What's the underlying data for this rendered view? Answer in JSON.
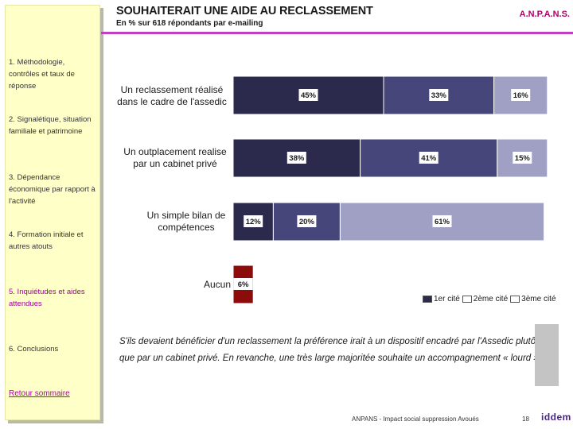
{
  "sidebar": {
    "items": [
      {
        "label": "1. Méthodologie, contrôles et taux de réponse"
      },
      {
        "label": "2. Signalétique, situation familiale et patrimoine"
      },
      {
        "label": "3. Dépendance économique par rapport à l'activité"
      },
      {
        "label": "4. Formation initiale et autres atouts"
      },
      {
        "label": "5. Inquiétudes et aides attendues"
      },
      {
        "label": "6. Conclusions"
      }
    ],
    "back_link": "Retour sommaire"
  },
  "header": {
    "title": "SOUHAITERAIT UNE AIDE AU RECLASSEMENT",
    "subtitle": "En % sur 618 répondants par e-mailing",
    "brand": "A.N.P.A.N.S."
  },
  "chart_data": {
    "type": "bar",
    "orientation": "horizontal",
    "stacked": true,
    "categories": [
      "Un reclassement réalisé dans le cadre de l'assedic",
      "Un outplacement realise par un cabinet privé",
      "Un simple bilan de compétences",
      "Aucun"
    ],
    "series": [
      {
        "name": "1er cité",
        "values": [
          45,
          38,
          12,
          6
        ],
        "labels": [
          "45%",
          "38%",
          "12%",
          "6%"
        ]
      },
      {
        "name": "2ème cité",
        "values": [
          33,
          41,
          20,
          null
        ],
        "labels": [
          "33%",
          "41%",
          "20%",
          ""
        ]
      },
      {
        "name": "3ème cité",
        "values": [
          16,
          15,
          61,
          null
        ],
        "labels": [
          "16%",
          "15%",
          "61%",
          ""
        ]
      }
    ],
    "colors": {
      "series": [
        "#2b2a4c",
        "#46467a",
        "#a0a0c4"
      ],
      "aucun": "#8c0c0c"
    },
    "legend_position": "bottom-right",
    "grid": false
  },
  "legend": {
    "items": [
      "1er cité",
      "2ème cité",
      "3ème cité"
    ]
  },
  "quote": {
    "text": "S'ils devaient bénéficier d'un reclassement la préférence irait à un dispositif encadré par l'Assedic plutôt que par un cabinet privé. En revanche, une très large majoritée souhaite un accompagnement « lourd »."
  },
  "footer": {
    "text": "ANPANS - Impact social suppression Avoués",
    "page": "18",
    "logo": "iddem"
  }
}
